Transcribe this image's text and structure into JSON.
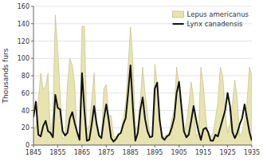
{
  "chart_data": {
    "type": "line",
    "x": [
      1845,
      1846,
      1847,
      1848,
      1849,
      1850,
      1851,
      1852,
      1853,
      1854,
      1855,
      1856,
      1857,
      1858,
      1859,
      1860,
      1861,
      1862,
      1863,
      1864,
      1865,
      1866,
      1867,
      1868,
      1869,
      1870,
      1871,
      1872,
      1873,
      1874,
      1875,
      1876,
      1877,
      1878,
      1879,
      1880,
      1881,
      1882,
      1883,
      1884,
      1885,
      1886,
      1887,
      1888,
      1889,
      1890,
      1891,
      1892,
      1893,
      1894,
      1895,
      1896,
      1897,
      1898,
      1899,
      1900,
      1901,
      1902,
      1903,
      1904,
      1905,
      1906,
      1907,
      1908,
      1909,
      1910,
      1911,
      1912,
      1913,
      1914,
      1915,
      1916,
      1917,
      1918,
      1919,
      1920,
      1921,
      1922,
      1923,
      1924,
      1925,
      1926,
      1927,
      1928,
      1929,
      1930,
      1931,
      1932,
      1933,
      1934,
      1935
    ],
    "series": [
      {
        "name": "Lepus americanus",
        "type": "area",
        "color": "#e8e4b0",
        "values": [
          20,
          20,
          52,
          83,
          64,
          68,
          83,
          12,
          36,
          150,
          110,
          60,
          7,
          10,
          70,
          100,
          92,
          70,
          10,
          11,
          137,
          137,
          18,
          22,
          52,
          83,
          18,
          10,
          9,
          65,
          70,
          34,
          34,
          10,
          9,
          13,
          14,
          30,
          48,
          90,
          136,
          95,
          18,
          22,
          52,
          90,
          60,
          37,
          10,
          10,
          93,
          70,
          34,
          10,
          10,
          12,
          14,
          30,
          40,
          90,
          70,
          30,
          14,
          25,
          47,
          73,
          53,
          10,
          14,
          90,
          70,
          34,
          10,
          10,
          14,
          30,
          50,
          90,
          80,
          38,
          14,
          25,
          48,
          75,
          53,
          10,
          15,
          30,
          48,
          90,
          80
        ]
      },
      {
        "name": "Lynx canadensis",
        "type": "line",
        "color": "#111111",
        "values": [
          32,
          50,
          12,
          10,
          22,
          28,
          16,
          14,
          9,
          58,
          43,
          41,
          16,
          11,
          14,
          31,
          38,
          25,
          15,
          6,
          83,
          40,
          5,
          6,
          24,
          45,
          25,
          11,
          8,
          30,
          47,
          29,
          8,
          4,
          7,
          12,
          14,
          24,
          31,
          60,
          92,
          42,
          5,
          14,
          40,
          55,
          30,
          16,
          9,
          10,
          65,
          72,
          29,
          9,
          6,
          10,
          12,
          20,
          31,
          60,
          73,
          44,
          16,
          9,
          12,
          28,
          45,
          30,
          16,
          6,
          18,
          20,
          15,
          5,
          5,
          12,
          10,
          20,
          30,
          40,
          60,
          45,
          15,
          8,
          14,
          24,
          31,
          47,
          31,
          15,
          5
        ]
      }
    ],
    "ylabel": "Thousands furs",
    "xlim": [
      1845,
      1935
    ],
    "ylim": [
      0,
      160
    ],
    "xticks": [
      1845,
      1855,
      1865,
      1875,
      1885,
      1895,
      1905,
      1915,
      1925,
      1935
    ],
    "yticks": [
      0,
      20,
      40,
      60,
      80,
      100,
      120,
      140,
      160
    ],
    "grid": true,
    "legend": "upper right"
  }
}
